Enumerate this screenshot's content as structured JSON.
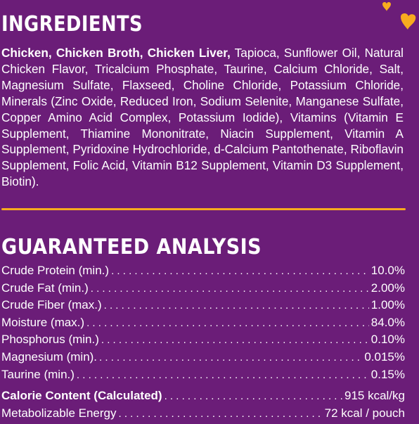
{
  "ingredients": {
    "heading": "INGREDIENTS",
    "bold_lead": "Chicken, Chicken Broth, Chicken Liver,",
    "text": " Tapioca, Sunflower Oil, Natural Chicken Flavor, Tricalcium Phosphate, Taurine, Calcium Chloride, Salt, Magnesium Sulfate, Flaxseed, Choline Chloride, Potassium Chloride, Minerals (Zinc Oxide, Reduced Iron, Sodium Selenite, Manganese Sulfate, Copper Amino Acid Complex, Potassium Iodide), Vitamins (Vitamin E Supplement, Thiamine Mononitrate, Niacin Supplement, Vitamin A Supplement, Pyridoxine Hydrochloride, d-Calcium Pantothenate, Riboflavin Supplement, Folic Acid, Vitamin B12 Supplement, Vitamin D3 Supplement, Biotin)."
  },
  "guaranteed_analysis": {
    "heading": "GUARANTEED ANALYSIS",
    "rows": [
      {
        "label": "Crude Protein (min.)",
        "value": "10.0%"
      },
      {
        "label": "Crude Fat (min.)",
        "value": "2.00%"
      },
      {
        "label": "Crude Fiber (max.)",
        "value": "1.00%"
      },
      {
        "label": "Moisture (max.)",
        "value": "84.0%"
      },
      {
        "label": "Phosphorus (min.)",
        "value": "0.10%"
      },
      {
        "label": "Magnesium (min).",
        "value": "0.015%"
      },
      {
        "label": "Taurine (min.)",
        "value": "0.15%"
      }
    ]
  },
  "calorie": {
    "rows": [
      {
        "label": "Calorie Content (Calculated)",
        "value": "915 kcal/kg"
      },
      {
        "label": "Metabolizable Energy",
        "value": "72 kcal / pouch"
      }
    ]
  },
  "colors": {
    "background": "#6b1d78",
    "accent": "#f7ab1f",
    "text": "#ffffff"
  },
  "icons": {
    "decoration": "hearts-icon"
  }
}
